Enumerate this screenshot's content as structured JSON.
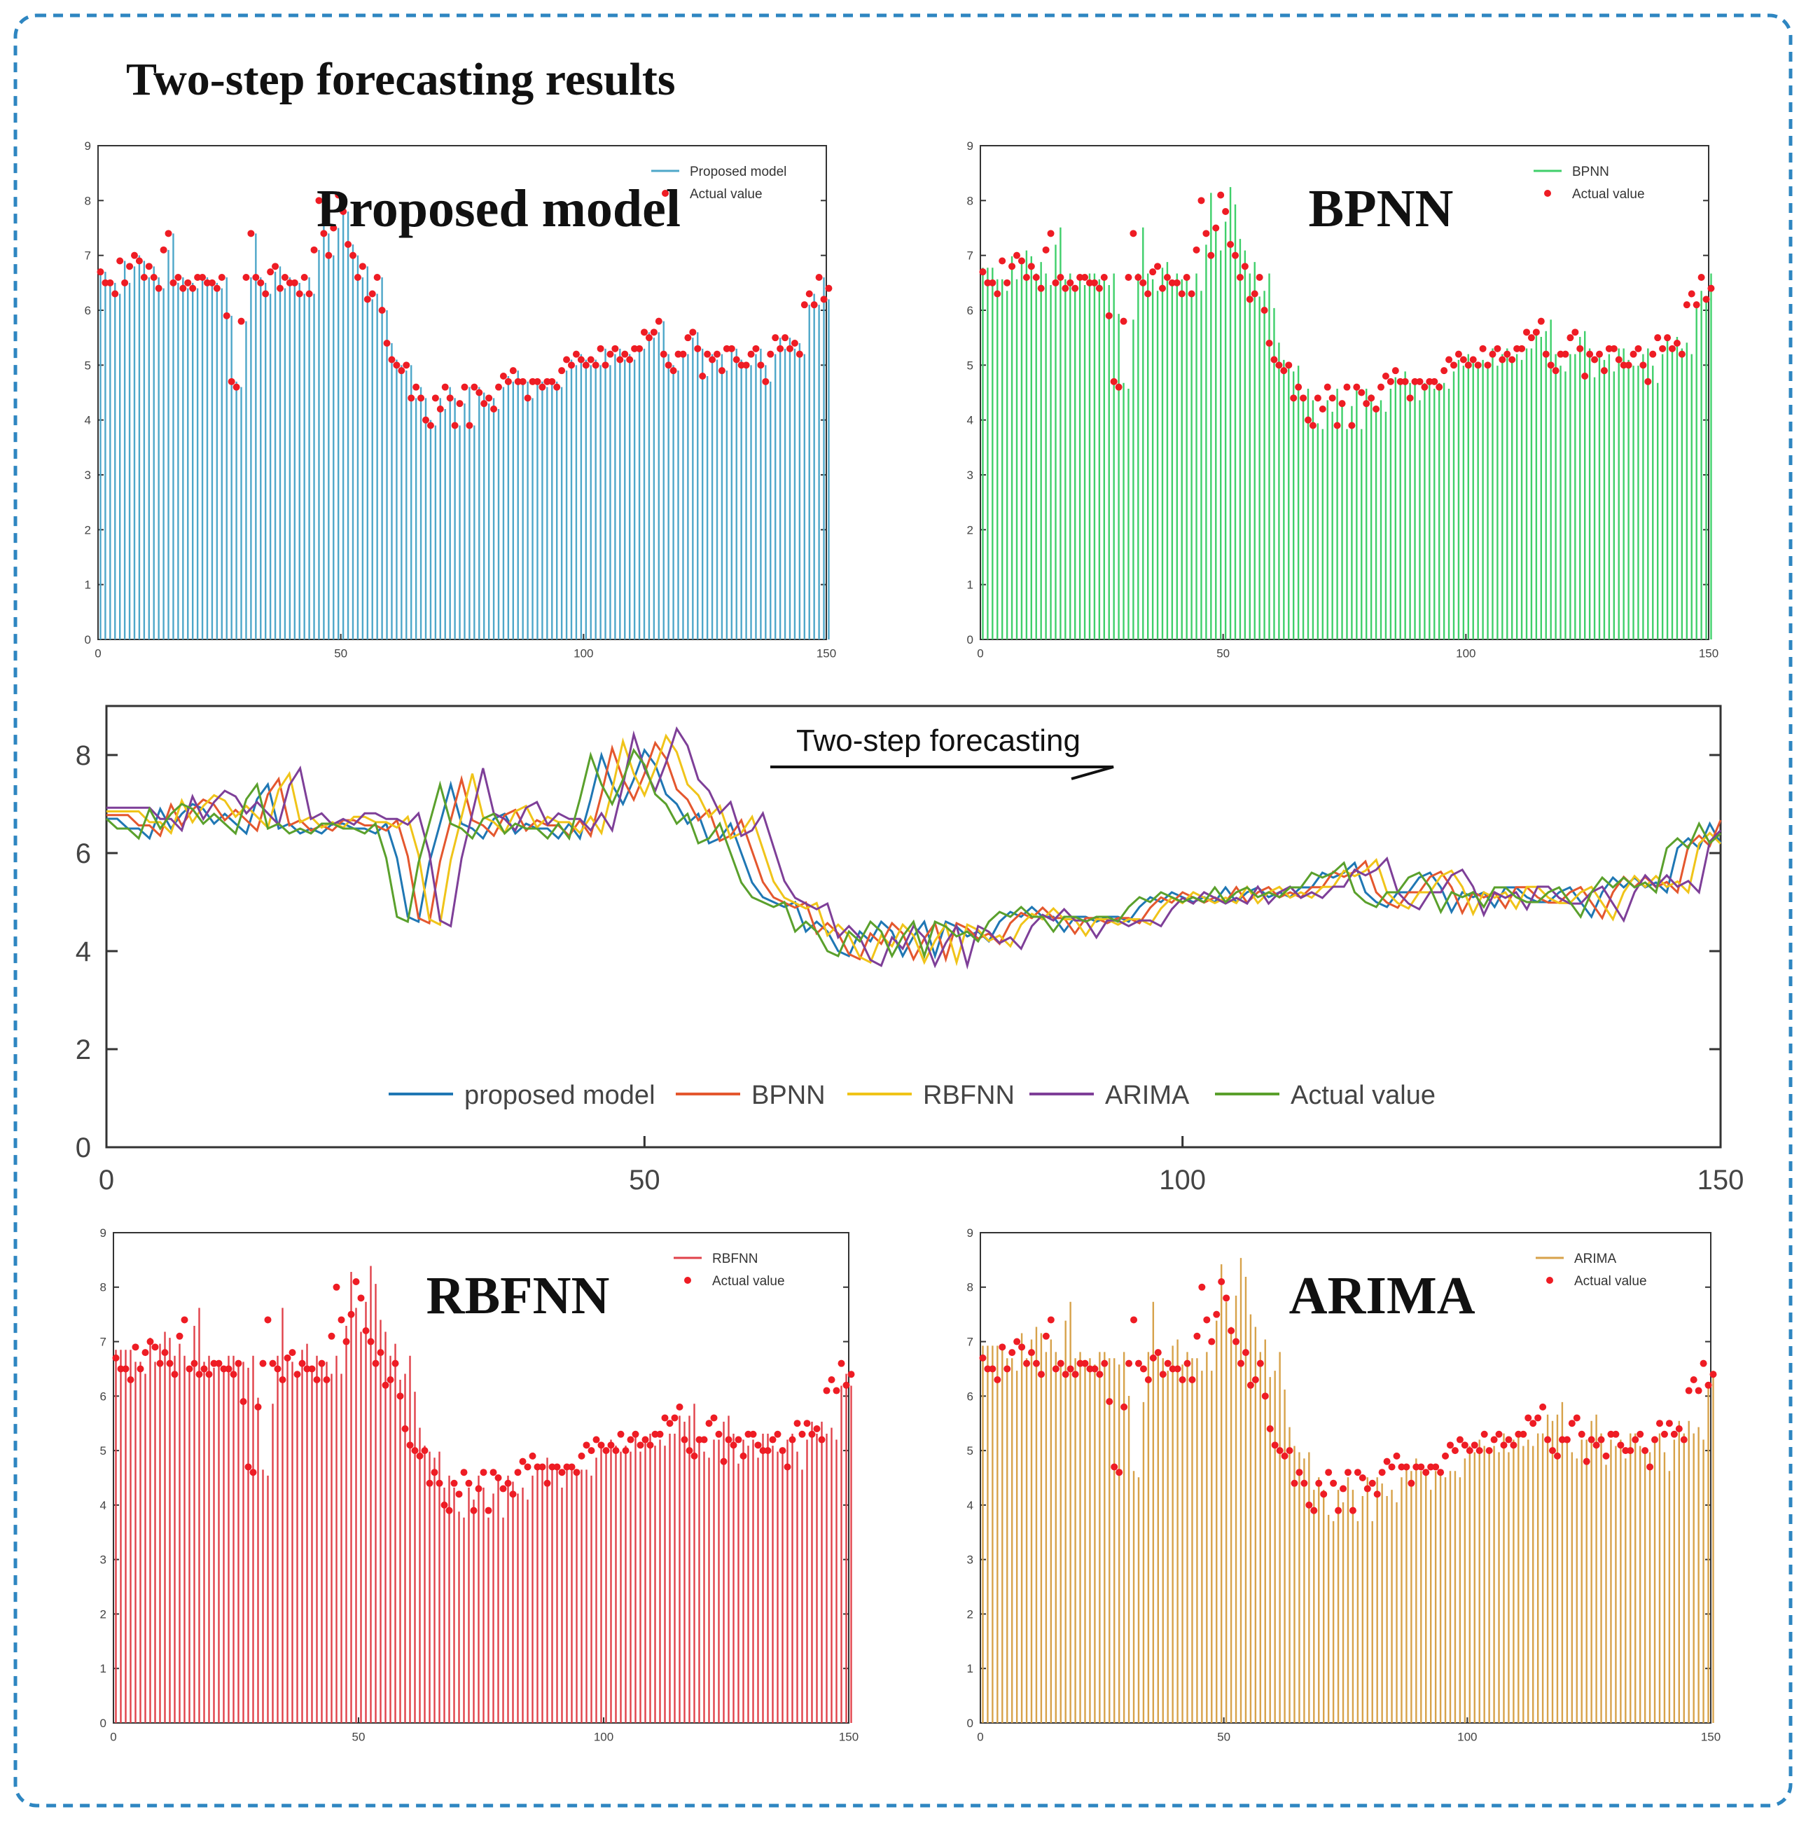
{
  "figure_title": "Two-step forecasting results",
  "colors": {
    "frame": "#2e86c1",
    "axis": "#333333",
    "proposed": "#4ea7c9",
    "bpnn": "#3fcf6a",
    "rbfnn": "#e0424a",
    "arima": "#d7a24a",
    "actual_marker": "#ee1c24",
    "line_proposed": "#1f77b4",
    "line_bpnn": "#e4572e",
    "line_rbfnn": "#f0c419",
    "line_arima": "#7e3f98",
    "line_actual": "#5aa02c"
  },
  "chart_data": [
    {
      "id": "proposed",
      "type": "bar",
      "title": "Proposed model",
      "legend": [
        "Proposed model",
        "Actual value"
      ],
      "legend_position": "top-right",
      "xlim": [
        0,
        150
      ],
      "ylim": [
        0,
        9
      ],
      "xticks": [
        0,
        50,
        100,
        150
      ],
      "xtick_labels": [
        "0",
        "50",
        "100",
        "150"
      ],
      "yticks": [
        0,
        1,
        2,
        3,
        4,
        5,
        6,
        7,
        8,
        9
      ],
      "series_note": "forecast bars, n=150; actual value shown as red markers"
    },
    {
      "id": "bpnn",
      "type": "bar",
      "title": "BPNN",
      "legend": [
        "BPNN",
        "Actual value"
      ],
      "legend_position": "top-right",
      "xlim": [
        0,
        150
      ],
      "ylim": [
        0,
        9
      ],
      "xticks": [
        0,
        50,
        100,
        150
      ],
      "xtick_labels": [
        "0",
        "50",
        "100",
        "150"
      ],
      "yticks": [
        0,
        1,
        2,
        3,
        4,
        5,
        6,
        7,
        8,
        9
      ]
    },
    {
      "id": "combined",
      "type": "line",
      "title": "Two-step forecasting",
      "legend": [
        "proposed model",
        "BPNN",
        "RBFNN",
        "ARIMA",
        "Actual value"
      ],
      "legend_position": "bottom",
      "xlim": [
        0,
        150
      ],
      "ylim": [
        0,
        9
      ],
      "xticks": [
        0,
        50,
        100,
        150
      ],
      "xtick_labels": [
        "0",
        "50",
        "100",
        "150"
      ],
      "yticks": [
        0,
        2,
        4,
        6,
        8
      ],
      "actual_values": [
        6.7,
        6.5,
        6.5,
        6.3,
        6.9,
        6.5,
        6.8,
        7.0,
        6.9,
        6.6,
        6.8,
        6.6,
        6.4,
        7.1,
        7.4,
        6.5,
        6.6,
        6.4,
        6.5,
        6.4,
        6.6,
        6.6,
        6.5,
        6.5,
        6.4,
        6.6,
        5.9,
        4.7,
        4.6,
        5.8,
        6.6,
        7.4,
        6.6,
        6.5,
        6.3,
        6.7,
        6.8,
        6.4,
        6.6,
        6.5,
        6.5,
        6.3,
        6.6,
        6.3,
        7.1,
        8.0,
        7.4,
        7.0,
        7.5,
        8.1,
        7.8,
        7.2,
        7.0,
        6.6,
        6.8,
        6.2,
        6.3,
        6.6,
        6.0,
        5.4,
        5.1,
        5.0,
        4.9,
        5.0,
        4.4,
        4.6,
        4.4,
        4.0,
        3.9,
        4.4,
        4.2,
        4.6,
        4.4,
        3.9,
        4.3,
        4.6,
        3.9,
        4.6,
        4.5,
        4.3,
        4.4,
        4.2,
        4.6,
        4.8,
        4.7,
        4.9,
        4.7,
        4.7,
        4.4,
        4.7,
        4.7,
        4.6,
        4.7,
        4.7,
        4.6,
        4.9,
        5.1,
        5.0,
        5.2,
        5.1,
        5.0,
        5.1,
        5.0,
        5.3,
        5.0,
        5.2,
        5.3,
        5.1,
        5.2,
        5.1,
        5.3,
        5.3,
        5.6,
        5.5,
        5.6,
        5.8,
        5.2,
        5.0,
        4.9,
        5.2,
        5.2,
        5.5,
        5.6,
        5.3,
        4.8,
        5.2,
        5.1,
        5.2,
        4.9,
        5.3,
        5.3,
        5.1,
        5.0,
        5.0,
        5.2,
        5.3,
        5.0,
        4.7,
        5.2,
        5.5,
        5.3,
        5.5,
        5.3,
        5.4,
        5.2,
        6.1,
        6.3,
        6.1,
        6.6,
        6.2,
        6.4
      ],
      "forecast_series": [
        {
          "name": "proposed model",
          "lag": 1,
          "scale": 1.0
        },
        {
          "name": "BPNN",
          "lag": 2,
          "scale": 1.05
        },
        {
          "name": "RBFNN",
          "lag": 3,
          "scale": 1.1
        },
        {
          "name": "ARIMA",
          "lag": 4,
          "scale": 1.15
        }
      ]
    },
    {
      "id": "rbfnn",
      "type": "bar",
      "title": "RBFNN",
      "legend": [
        "RBFNN",
        "Actual value"
      ],
      "legend_position": "top-right",
      "xlim": [
        0,
        150
      ],
      "ylim": [
        0,
        9
      ],
      "xticks": [
        0,
        50,
        100,
        150
      ],
      "xtick_labels": [
        "0",
        "50",
        "100",
        "150"
      ],
      "yticks": [
        0,
        1,
        2,
        3,
        4,
        5,
        6,
        7,
        8,
        9
      ]
    },
    {
      "id": "arima",
      "type": "bar",
      "title": "ARIMA",
      "legend": [
        "ARIMA",
        "Actual value"
      ],
      "legend_position": "top-right",
      "xlim": [
        0,
        150
      ],
      "ylim": [
        0,
        9
      ],
      "xticks": [
        0,
        50,
        100,
        150
      ],
      "xtick_labels": [
        "0",
        "50",
        "100",
        "150"
      ],
      "yticks": [
        0,
        1,
        2,
        3,
        4,
        5,
        6,
        7,
        8,
        9
      ]
    }
  ]
}
